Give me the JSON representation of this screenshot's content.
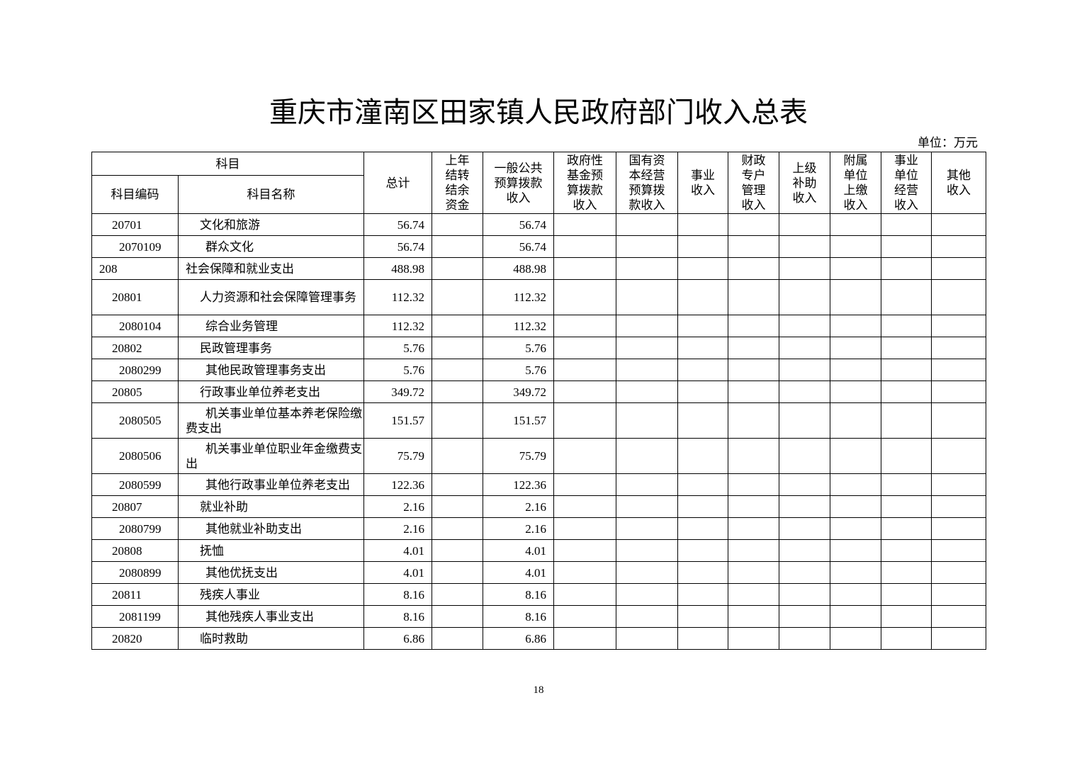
{
  "title": "重庆市潼南区田家镇人民政府部门收入总表",
  "unit": "单位：万元",
  "header": {
    "subject": "科目",
    "code": "科目编码",
    "name": "科目名称",
    "columns": [
      "总计",
      "上年\n结转\n结余\n资金",
      "一般公共\n预算拨款\n收入",
      "政府性\n基金预\n算拨款\n收入",
      "国有资\n本经营\n预算拨\n款收入",
      "事业\n收入",
      "财政\n专户\n管理\n收入",
      "上级\n补助\n收入",
      "附属\n单位\n上缴\n收入",
      "事业\n单位\n经营\n收入",
      "其他\n收入"
    ]
  },
  "rows": [
    {
      "level": 1,
      "code": "20701",
      "name": "文化和旅游",
      "total": "56.74",
      "general": "56.74"
    },
    {
      "level": 2,
      "code": "2070109",
      "name": "群众文化",
      "total": "56.74",
      "general": "56.74"
    },
    {
      "level": 0,
      "code": "208",
      "name": "社会保障和就业支出",
      "total": "488.98",
      "general": "488.98"
    },
    {
      "level": 1,
      "code": "20801",
      "name": "人力资源和社会保障管理事务",
      "total": "112.32",
      "general": "112.32"
    },
    {
      "level": 2,
      "code": "2080104",
      "name": "综合业务管理",
      "total": "112.32",
      "general": "112.32"
    },
    {
      "level": 1,
      "code": "20802",
      "name": "民政管理事务",
      "total": "5.76",
      "general": "5.76"
    },
    {
      "level": 2,
      "code": "2080299",
      "name": "其他民政管理事务支出",
      "total": "5.76",
      "general": "5.76"
    },
    {
      "level": 1,
      "code": "20805",
      "name": "行政事业单位养老支出",
      "total": "349.72",
      "general": "349.72"
    },
    {
      "level": 2,
      "code": "2080505",
      "name": "机关事业单位基本养老保险缴费支出",
      "total": "151.57",
      "general": "151.57"
    },
    {
      "level": 2,
      "code": "2080506",
      "name": "机关事业单位职业年金缴费支出",
      "total": "75.79",
      "general": "75.79"
    },
    {
      "level": 2,
      "code": "2080599",
      "name": "其他行政事业单位养老支出",
      "total": "122.36",
      "general": "122.36"
    },
    {
      "level": 1,
      "code": "20807",
      "name": "就业补助",
      "total": "2.16",
      "general": "2.16"
    },
    {
      "level": 2,
      "code": "2080799",
      "name": "其他就业补助支出",
      "total": "2.16",
      "general": "2.16"
    },
    {
      "level": 1,
      "code": "20808",
      "name": "抚恤",
      "total": "4.01",
      "general": "4.01"
    },
    {
      "level": 2,
      "code": "2080899",
      "name": "其他优抚支出",
      "total": "4.01",
      "general": "4.01"
    },
    {
      "level": 1,
      "code": "20811",
      "name": "残疾人事业",
      "total": "8.16",
      "general": "8.16"
    },
    {
      "level": 2,
      "code": "2081199",
      "name": "其他残疾人事业支出",
      "total": "8.16",
      "general": "8.16"
    },
    {
      "level": 1,
      "code": "20820",
      "name": "临时救助",
      "total": "6.86",
      "general": "6.86"
    }
  ],
  "page_number": "18"
}
